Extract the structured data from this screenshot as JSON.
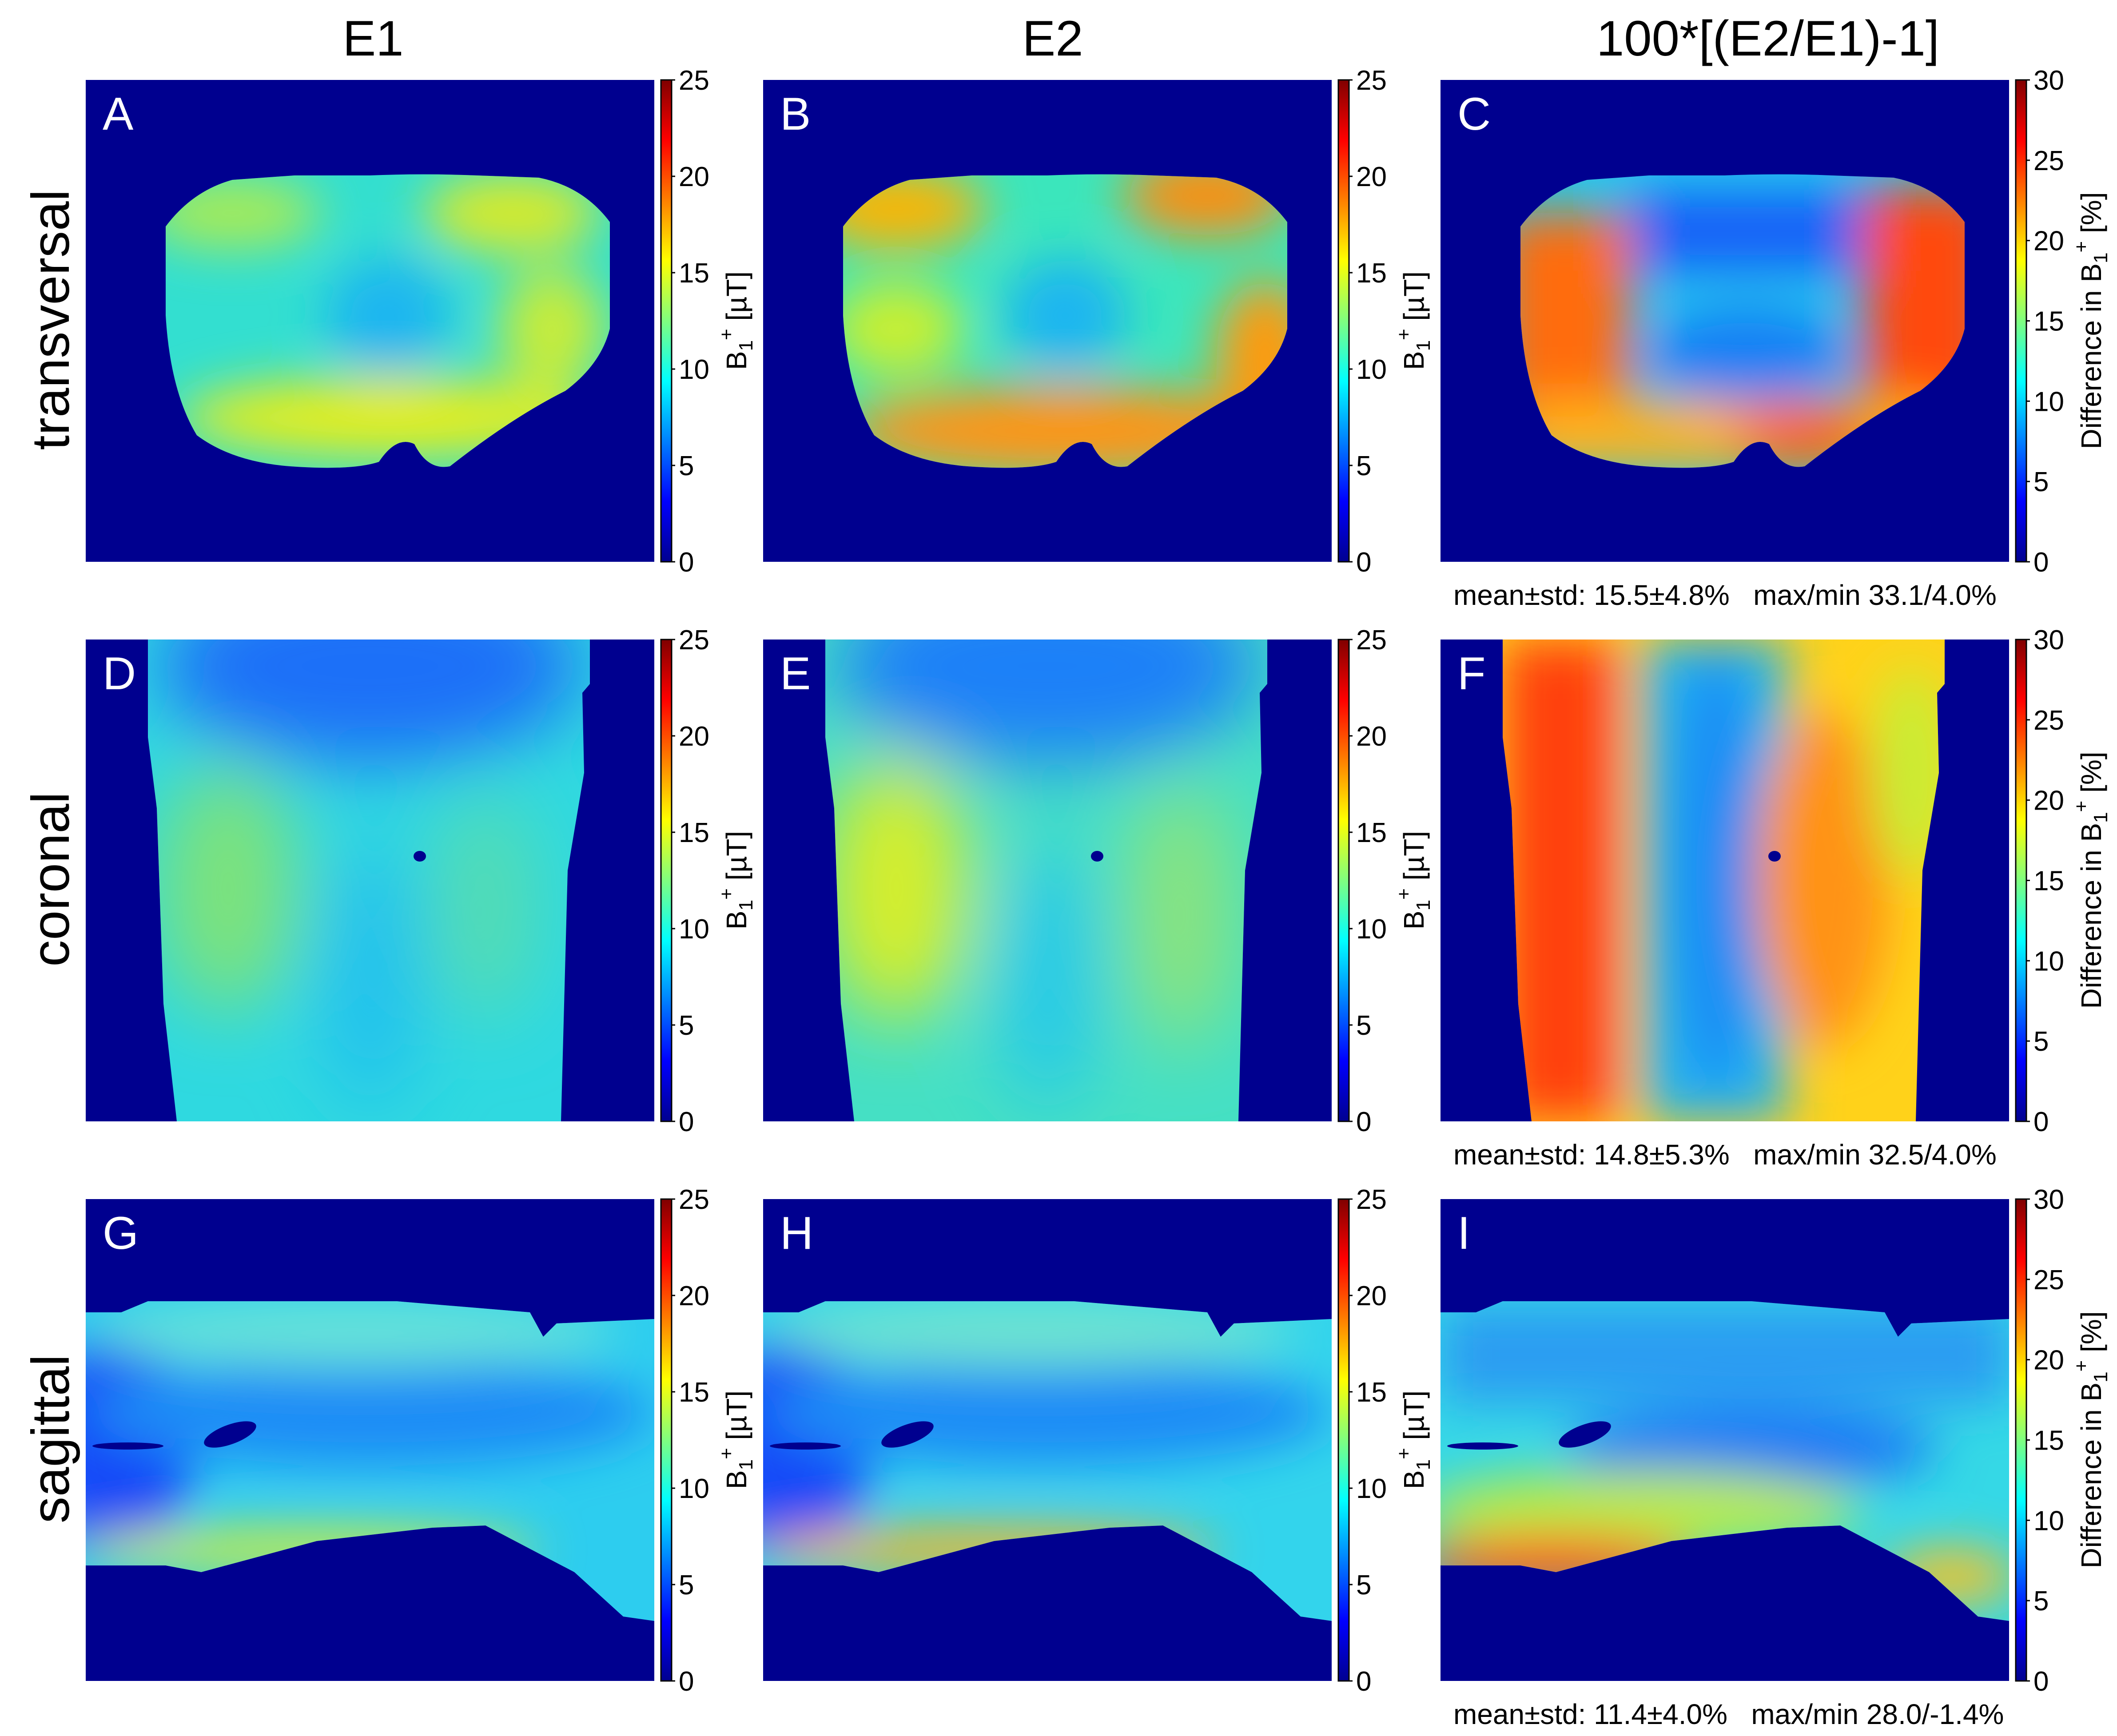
{
  "columns": [
    "E1",
    "E2",
    "100*[(E2/E1)-1]"
  ],
  "rows": [
    "transversal",
    "coronal",
    "sagittal"
  ],
  "panel_letters": [
    "A",
    "B",
    "C",
    "D",
    "E",
    "F",
    "G",
    "H",
    "I"
  ],
  "colorbars": {
    "b1": {
      "label": "B1+ [µT]",
      "label_main": "B",
      "label_sub": "1",
      "label_sup": "+",
      "label_unit": " [µT]",
      "ticks": [
        "0",
        "5",
        "10",
        "15",
        "20",
        "25"
      ],
      "range": [
        0,
        25
      ]
    },
    "diff": {
      "label": "Difference in B1+ [%]",
      "label_main": "Difference in B",
      "label_sub": "1",
      "label_sup": "+",
      "label_unit": " [%]",
      "ticks": [
        "0",
        "5",
        "10",
        "15",
        "20",
        "25",
        "30"
      ],
      "range": [
        0,
        30
      ]
    }
  },
  "stats": [
    "mean±std: 15.5±4.8%   max/min 33.1/4.0%",
    "mean±std: 14.8±5.3%   max/min 32.5/4.0%",
    "mean±std: 11.4±4.0%   max/min 28.0/-1.4%"
  ],
  "colormap": "jet",
  "background_color": "#00008f"
}
